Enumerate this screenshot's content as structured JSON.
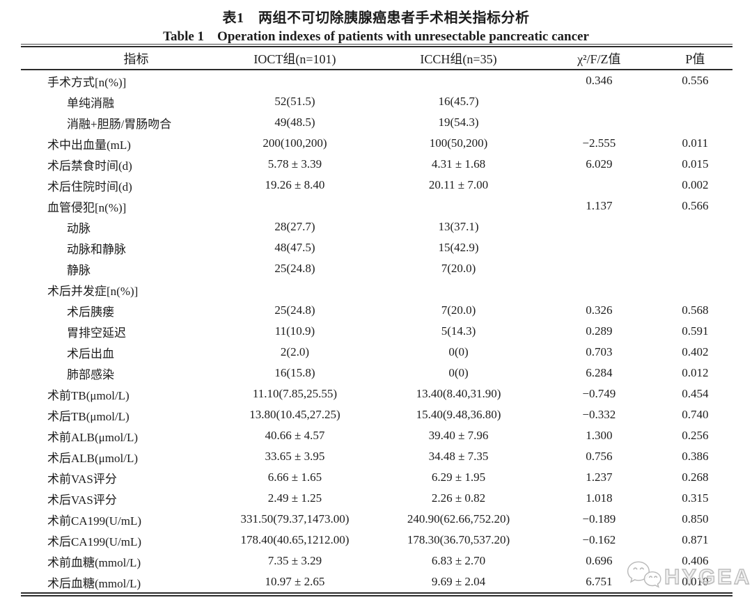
{
  "titles": {
    "zh": "表1　两组不可切除胰腺癌患者手术相关指标分析",
    "en": "Table 1　Operation indexes of patients with unresectable pancreatic cancer"
  },
  "table": {
    "columns": [
      "指标",
      "IOCT组(n=101)",
      "ICCH组(n=35)",
      "χ²/F/Z值",
      "P值"
    ],
    "rows": [
      {
        "label": "手术方式[n(%)]",
        "indent": 0,
        "ioct": "",
        "icch": "",
        "stat": "0.346",
        "p": "0.556"
      },
      {
        "label": "单纯消融",
        "indent": 1,
        "ioct": "52(51.5)",
        "icch": "16(45.7)",
        "stat": "",
        "p": ""
      },
      {
        "label": "消融+胆肠/胃肠吻合",
        "indent": 1,
        "ioct": "49(48.5)",
        "icch": "19(54.3)",
        "stat": "",
        "p": ""
      },
      {
        "label": "术中出血量(mL)",
        "indent": 0,
        "ioct": "200(100,200)",
        "icch": "100(50,200)",
        "stat": "−2.555",
        "p": "0.011"
      },
      {
        "label": "术后禁食时间(d)",
        "indent": 0,
        "ioct": "5.78 ± 3.39",
        "icch": "4.31 ± 1.68",
        "stat": "6.029",
        "p": "0.015"
      },
      {
        "label": "术后住院时间(d)",
        "indent": 0,
        "ioct": "19.26 ± 8.40",
        "icch": "20.11 ± 7.00",
        "stat": "",
        "p": "0.002"
      },
      {
        "label": "血管侵犯[n(%)]",
        "indent": 0,
        "ioct": "",
        "icch": "",
        "stat": "1.137",
        "p": "0.566"
      },
      {
        "label": "动脉",
        "indent": 1,
        "ioct": "28(27.7)",
        "icch": "13(37.1)",
        "stat": "",
        "p": ""
      },
      {
        "label": "动脉和静脉",
        "indent": 1,
        "ioct": "48(47.5)",
        "icch": "15(42.9)",
        "stat": "",
        "p": ""
      },
      {
        "label": "静脉",
        "indent": 1,
        "ioct": "25(24.8)",
        "icch": "7(20.0)",
        "stat": "",
        "p": ""
      },
      {
        "label": "术后并发症[n(%)]",
        "indent": 0,
        "ioct": "",
        "icch": "",
        "stat": "",
        "p": ""
      },
      {
        "label": "术后胰瘘",
        "indent": 1,
        "ioct": "25(24.8)",
        "icch": "7(20.0)",
        "stat": "0.326",
        "p": "0.568"
      },
      {
        "label": "胃排空延迟",
        "indent": 1,
        "ioct": "11(10.9)",
        "icch": "5(14.3)",
        "stat": "0.289",
        "p": "0.591"
      },
      {
        "label": "术后出血",
        "indent": 1,
        "ioct": "2(2.0)",
        "icch": "0(0)",
        "stat": "0.703",
        "p": "0.402"
      },
      {
        "label": "肺部感染",
        "indent": 1,
        "ioct": "16(15.8)",
        "icch": "0(0)",
        "stat": "6.284",
        "p": "0.012"
      },
      {
        "label": "术前TB(μmol/L)",
        "indent": 0,
        "ioct": "11.10(7.85,25.55)",
        "icch": "13.40(8.40,31.90)",
        "stat": "−0.749",
        "p": "0.454"
      },
      {
        "label": "术后TB(μmol/L)",
        "indent": 0,
        "ioct": "13.80(10.45,27.25)",
        "icch": "15.40(9.48,36.80)",
        "stat": "−0.332",
        "p": "0.740"
      },
      {
        "label": "术前ALB(μmol/L)",
        "indent": 0,
        "ioct": "40.66 ± 4.57",
        "icch": "39.40 ± 7.96",
        "stat": "1.300",
        "p": "0.256"
      },
      {
        "label": "术后ALB(μmol/L)",
        "indent": 0,
        "ioct": "33.65 ± 3.95",
        "icch": "34.48 ± 7.35",
        "stat": "0.756",
        "p": "0.386"
      },
      {
        "label": "术前VAS评分",
        "indent": 0,
        "ioct": "6.66 ± 1.65",
        "icch": "6.29 ± 1.95",
        "stat": "1.237",
        "p": "0.268"
      },
      {
        "label": "术后VAS评分",
        "indent": 0,
        "ioct": "2.49 ± 1.25",
        "icch": "2.26 ± 0.82",
        "stat": "1.018",
        "p": "0.315"
      },
      {
        "label": "术前CA199(U/mL)",
        "indent": 0,
        "ioct": "331.50(79.37,1473.00)",
        "icch": "240.90(62.66,752.20)",
        "stat": "−0.189",
        "p": "0.850"
      },
      {
        "label": "术后CA199(U/mL)",
        "indent": 0,
        "ioct": "178.40(40.65,1212.00)",
        "icch": "178.30(36.70,537.20)",
        "stat": "−0.162",
        "p": "0.871"
      },
      {
        "label": "术前血糖(mmol/L)",
        "indent": 0,
        "ioct": "7.35 ± 3.29",
        "icch": "6.83 ± 2.70",
        "stat": "0.696",
        "p": "0.406"
      },
      {
        "label": "术后血糖(mmol/L)",
        "indent": 0,
        "ioct": "10.97 ± 2.65",
        "icch": "9.69 ± 2.04",
        "stat": "6.751",
        "p": "0.010"
      }
    ]
  },
  "watermark": {
    "label": "HYGEA",
    "icon": "wechat-bubbles-icon",
    "color": "#b8b8b8"
  },
  "colors": {
    "rule": "#2b2b2b",
    "text": "#1c1c1c",
    "background": "#ffffff"
  }
}
